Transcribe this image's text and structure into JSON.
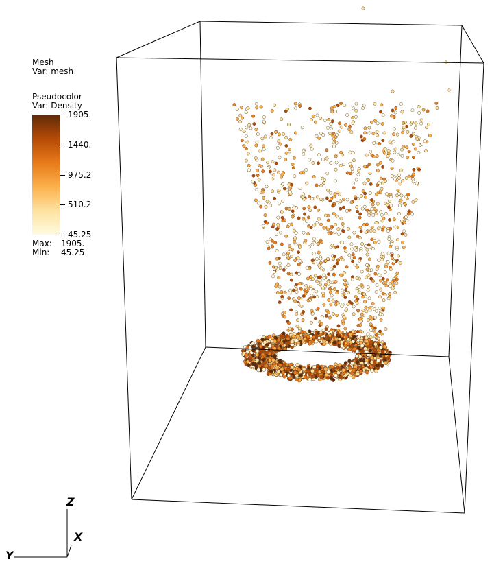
{
  "legends": {
    "mesh": {
      "title": "Mesh",
      "var": "Var: mesh"
    },
    "pseudocolor": {
      "title": "Pseudocolor",
      "var": "Var: Density",
      "ticks": [
        "1905.",
        "1440.",
        "975.2",
        "510.2",
        "45.25"
      ],
      "max_label": "Max:",
      "max_value": "1905.",
      "min_label": "Min:",
      "min_value": "45.25",
      "colormap": [
        "#fffbe0",
        "#fde2a0",
        "#fbb04a",
        "#e77a1a",
        "#b44a06",
        "#5e2a0a"
      ]
    }
  },
  "axes": {
    "z": "Z",
    "x": "X",
    "y": "Y"
  }
}
